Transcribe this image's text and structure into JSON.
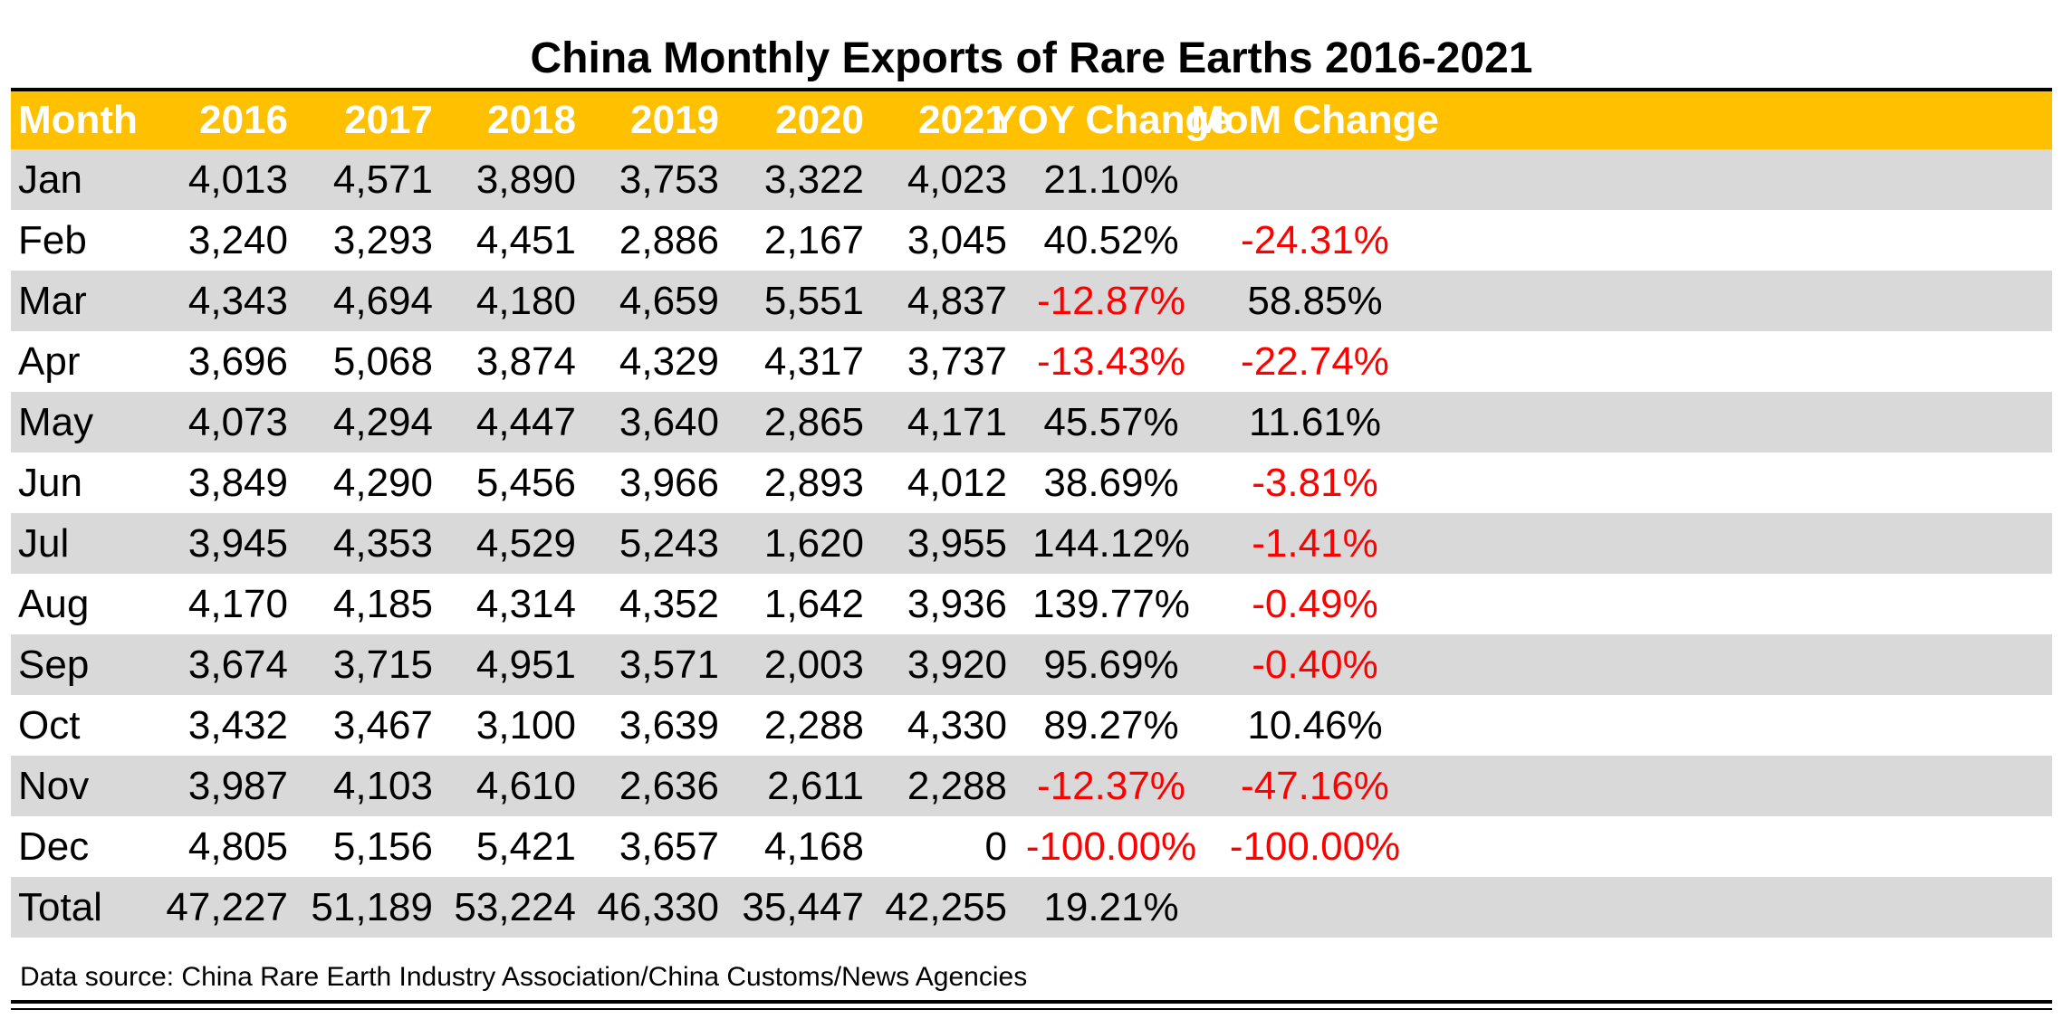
{
  "colors": {
    "header_bg": "#FFC000",
    "header_text": "#FFFFFF",
    "band": "#D9D9D9",
    "negative": "#FF0000"
  },
  "chart_data": {
    "type": "table",
    "title": "China Monthly Exports of Rare Earths 2016-2021",
    "columns": [
      "Month",
      "2016",
      "2017",
      "2018",
      "2019",
      "2020",
      "2021",
      "YOY Change",
      "MoM Change"
    ],
    "rows": [
      [
        "Jan",
        "4,013",
        "4,571",
        "3,890",
        "3,753",
        "3,322",
        "4,023",
        "21.10%",
        ""
      ],
      [
        "Feb",
        "3,240",
        "3,293",
        "4,451",
        "2,886",
        "2,167",
        "3,045",
        "40.52%",
        "-24.31%"
      ],
      [
        "Mar",
        "4,343",
        "4,694",
        "4,180",
        "4,659",
        "5,551",
        "4,837",
        "-12.87%",
        "58.85%"
      ],
      [
        "Apr",
        "3,696",
        "5,068",
        "3,874",
        "4,329",
        "4,317",
        "3,737",
        "-13.43%",
        "-22.74%"
      ],
      [
        "May",
        "4,073",
        "4,294",
        "4,447",
        "3,640",
        "2,865",
        "4,171",
        "45.57%",
        "11.61%"
      ],
      [
        "Jun",
        "3,849",
        "4,290",
        "5,456",
        "3,966",
        "2,893",
        "4,012",
        "38.69%",
        "-3.81%"
      ],
      [
        "Jul",
        "3,945",
        "4,353",
        "4,529",
        "5,243",
        "1,620",
        "3,955",
        "144.12%",
        "-1.41%"
      ],
      [
        "Aug",
        "4,170",
        "4,185",
        "4,314",
        "4,352",
        "1,642",
        "3,936",
        "139.77%",
        "-0.49%"
      ],
      [
        "Sep",
        "3,674",
        "3,715",
        "4,951",
        "3,571",
        "2,003",
        "3,920",
        "95.69%",
        "-0.40%"
      ],
      [
        "Oct",
        "3,432",
        "3,467",
        "3,100",
        "3,639",
        "2,288",
        "4,330",
        "89.27%",
        "10.46%"
      ],
      [
        "Nov",
        "3,987",
        "4,103",
        "4,610",
        "2,636",
        "2,611",
        "2,288",
        "-12.37%",
        "-47.16%"
      ],
      [
        "Dec",
        "4,805",
        "5,156",
        "5,421",
        "3,657",
        "4,168",
        "0",
        "-100.00%",
        "-100.00%"
      ],
      [
        "Total",
        "47,227",
        "51,189",
        "53,224",
        "46,330",
        "35,447",
        "42,255",
        "19.21%",
        ""
      ]
    ]
  },
  "source": "Data source: China Rare Earth Industry Association/China Customs/News Agencies"
}
